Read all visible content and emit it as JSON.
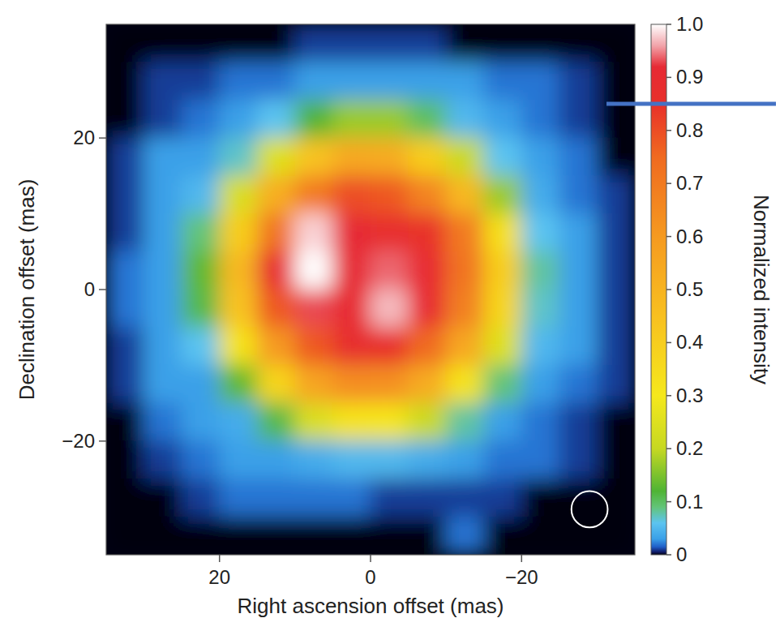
{
  "chart_data": {
    "type": "heatmap",
    "x_label": "Right ascension offset (mas)",
    "y_label": "Declination offset (mas)",
    "xlim": [
      35,
      -35
    ],
    "ylim": [
      -35,
      35
    ],
    "xticks": [
      20,
      0,
      {
        "value": -20,
        "label": "−20"
      }
    ],
    "yticks": [
      {
        "value": -20,
        "label": "−20"
      },
      0,
      20
    ],
    "x": [
      32.5,
      27.5,
      22.5,
      17.5,
      12.5,
      7.5,
      2.5,
      -2.5,
      -7.5,
      -12.5,
      -17.5,
      -22.5,
      -27.5,
      -32.5
    ],
    "y": [
      32.5,
      27.5,
      22.5,
      17.5,
      12.5,
      7.5,
      2.5,
      -2.5,
      -7.5,
      -12.5,
      -17.5,
      -22.5,
      -27.5,
      -32.5
    ],
    "cells": [
      [
        0,
        0,
        0,
        0,
        0,
        0.01,
        0.01,
        0.01,
        0.01,
        0,
        0,
        0,
        0,
        0
      ],
      [
        0,
        0.01,
        0.01,
        0.02,
        0.02,
        0.03,
        0.03,
        0.03,
        0.03,
        0.03,
        0.02,
        0.02,
        0.01,
        0
      ],
      [
        0,
        0.01,
        0.02,
        0.03,
        0.06,
        0.12,
        0.17,
        0.17,
        0.1,
        0.05,
        0.03,
        0.02,
        0.01,
        0
      ],
      [
        0.01,
        0.03,
        0.03,
        0.07,
        0.25,
        0.44,
        0.54,
        0.53,
        0.4,
        0.21,
        0.06,
        0.03,
        0.02,
        0
      ],
      [
        0.01,
        0.03,
        0.05,
        0.24,
        0.52,
        0.7,
        0.8,
        0.78,
        0.67,
        0.48,
        0.17,
        0.04,
        0.02,
        0.01
      ],
      [
        0.01,
        0.03,
        0.09,
        0.4,
        0.72,
        0.98,
        0.92,
        0.88,
        0.85,
        0.7,
        0.33,
        0.06,
        0.03,
        0.01
      ],
      [
        0.02,
        0.03,
        0.13,
        0.48,
        0.9,
        1.0,
        0.92,
        0.94,
        0.9,
        0.72,
        0.4,
        0.08,
        0.03,
        0.01
      ],
      [
        0.02,
        0.03,
        0.11,
        0.44,
        0.78,
        0.93,
        0.9,
        0.97,
        0.9,
        0.68,
        0.37,
        0.07,
        0.03,
        0.01
      ],
      [
        0.01,
        0.03,
        0.06,
        0.32,
        0.6,
        0.78,
        0.87,
        0.86,
        0.75,
        0.55,
        0.25,
        0.05,
        0.03,
        0.01
      ],
      [
        0.01,
        0.03,
        0.03,
        0.13,
        0.37,
        0.56,
        0.64,
        0.63,
        0.53,
        0.32,
        0.09,
        0.03,
        0.02,
        0.01
      ],
      [
        0,
        0.02,
        0.03,
        0.04,
        0.11,
        0.24,
        0.32,
        0.31,
        0.21,
        0.08,
        0.03,
        0.02,
        0.01,
        0
      ],
      [
        0,
        0.01,
        0.02,
        0.03,
        0.03,
        0.04,
        0.05,
        0.05,
        0.04,
        0.03,
        0.02,
        0.02,
        0.01,
        0
      ],
      [
        0,
        0,
        0.01,
        0.02,
        0.02,
        0.02,
        0.02,
        0.01,
        0.01,
        0.01,
        0.01,
        0,
        0,
        0
      ],
      [
        0,
        0,
        0,
        0,
        0,
        0,
        0,
        0,
        0,
        0.02,
        0,
        0,
        0,
        0
      ]
    ],
    "colorbar": {
      "label": "Normalized intensity",
      "range": [
        0,
        1
      ],
      "ticks": [
        0,
        0.1,
        0.2,
        0.3,
        0.4,
        0.5,
        0.6,
        0.7,
        0.8,
        0.9,
        {
          "value": 1,
          "label": "1.0"
        }
      ]
    },
    "colorbar_marker": {
      "value": 0.85,
      "color": "#4472c4"
    },
    "beam": {
      "x": -29,
      "y": -29,
      "radius": 2.4
    }
  }
}
